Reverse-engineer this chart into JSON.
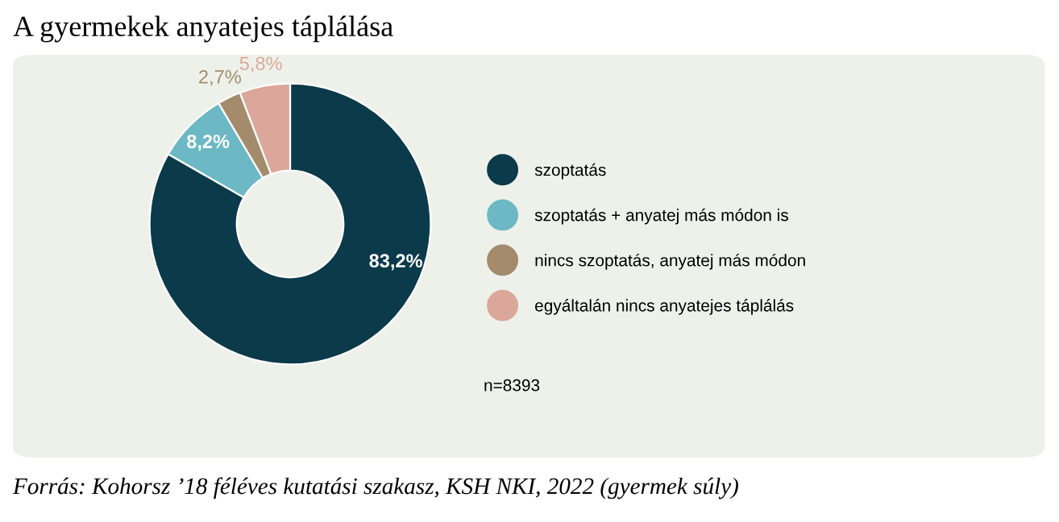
{
  "chart_data": {
    "type": "donut",
    "title": "A gyermekek anyatejes táplálása",
    "categories": [
      "szoptatás",
      "szoptatás + anyatej más módon is",
      "nincs szoptatás, anyatej más módon",
      "egyáltalán nincs anyatejes táplálás"
    ],
    "values": [
      83.2,
      8.2,
      2.7,
      5.8
    ],
    "colors": [
      "#0b3a4a",
      "#6cb8c4",
      "#a38b6c",
      "#dba79a"
    ],
    "value_labels": [
      "83,2%",
      "8,2%",
      "2,7%",
      "5,8%"
    ],
    "legend": "right",
    "annotations": [
      "n=8393",
      "Forrás: Kohorsz ’18 féléves kutatási szakasz, KSH NKI, 2022 (gyermek súly)"
    ]
  }
}
